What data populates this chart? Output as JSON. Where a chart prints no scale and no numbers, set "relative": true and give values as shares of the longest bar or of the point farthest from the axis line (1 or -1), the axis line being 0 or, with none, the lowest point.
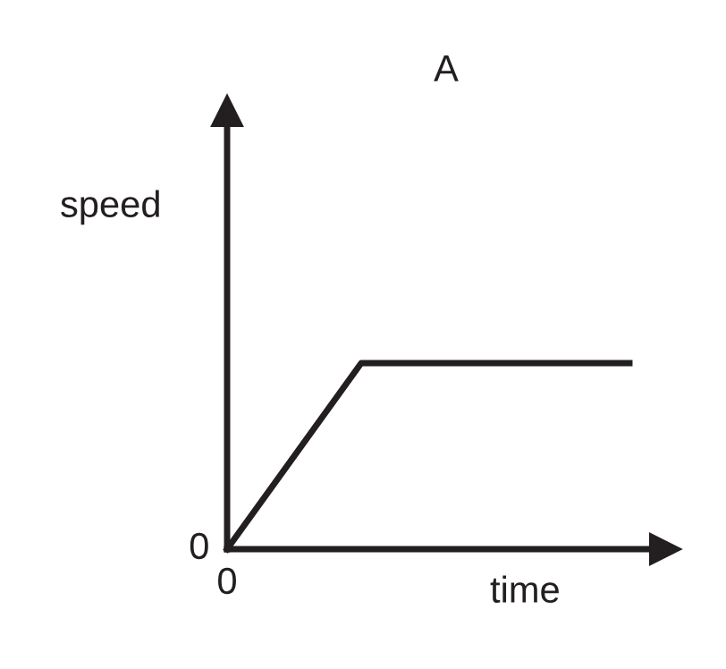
{
  "chart_data": {
    "type": "line",
    "title": "A",
    "xlabel": "time",
    "ylabel": "speed",
    "relative": true,
    "categories": [
      null,
      null,
      null,
      null
    ],
    "series": [
      {
        "color": "#231f20",
        "values": [
          0,
          1,
          1,
          1
        ]
      }
    ],
    "annotations": [
      "0",
      "0"
    ],
    "marker": "none",
    "line_style": "solid"
  }
}
